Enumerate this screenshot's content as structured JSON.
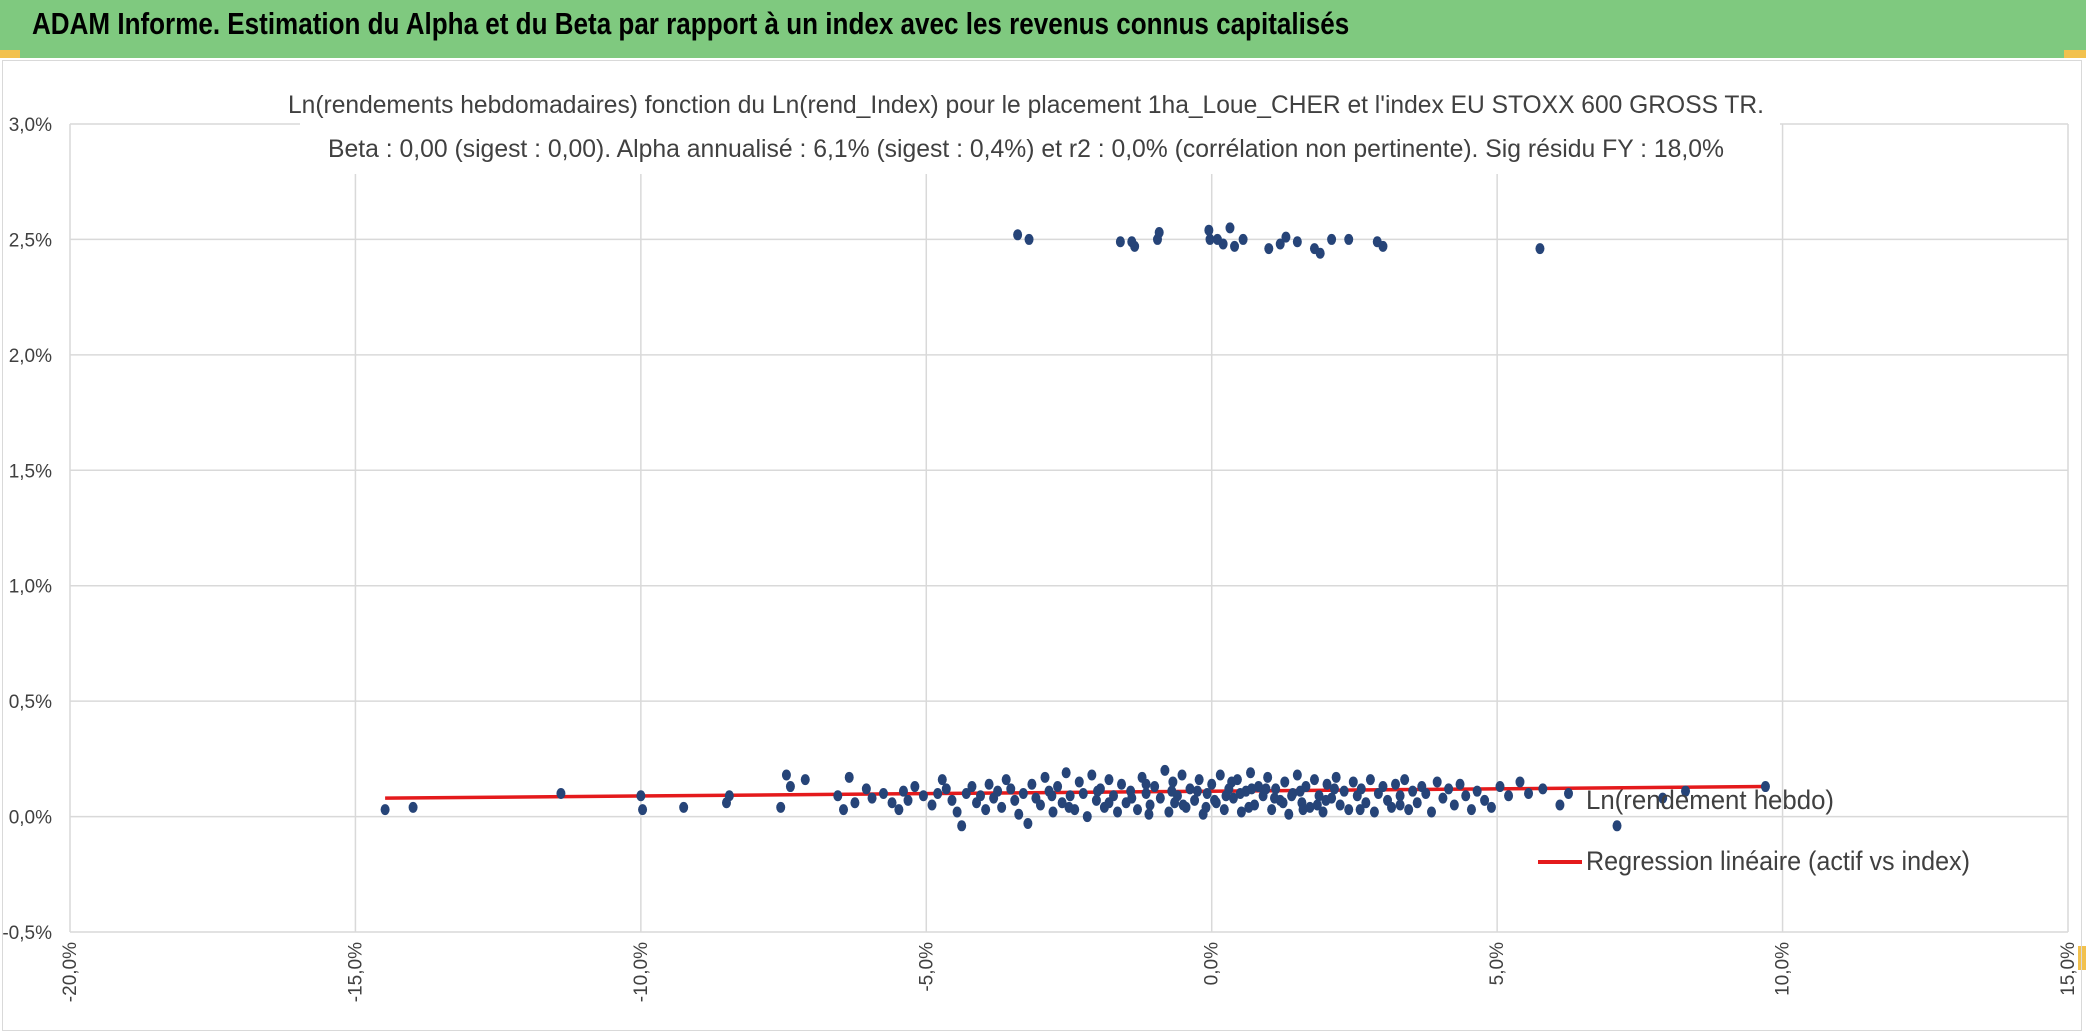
{
  "header": {
    "title": "ADAM Informe. Estimation du Alpha et du Beta par rapport à un index avec les revenus connus capitalisés",
    "background_color": "#7fc97f",
    "accent_color": "#f2c14e"
  },
  "chart_data": {
    "type": "scatter",
    "title": "Ln(rendements hebdomadaires) fonction du Ln(rend_Index) pour le placement 1ha_Loue_CHER et l'index EU STOXX 600 GROSS TR.",
    "subtitle": "Beta : 0,00 (sigest : 0,00). Alpha annualisé : 6,1% (sigest : 0,4%) et r2 : 0,0% (corrélation non pertinente). Sig résidu FY : 18,0%",
    "xlim": [
      -0.2,
      0.15
    ],
    "ylim": [
      -0.005,
      0.03
    ],
    "xticks": [
      -0.2,
      -0.15,
      -0.1,
      -0.05,
      0.0,
      0.05,
      0.1,
      0.15
    ],
    "yticks": [
      -0.005,
      0.0,
      0.005,
      0.01,
      0.015,
      0.02,
      0.025,
      0.03
    ],
    "xtick_labels": [
      "-20,0%",
      "-15,0%",
      "-10,0%",
      "-5,0%",
      "0,0%",
      "5,0%",
      "10,0%",
      "15,0%"
    ],
    "ytick_labels": [
      "-0,5%",
      "0,0%",
      "0,5%",
      "1,0%",
      "1,5%",
      "2,0%",
      "2,5%",
      "3,0%"
    ],
    "grid": true,
    "legend_position": "right",
    "series": [
      {
        "name": "Ln(rendement hebdo)",
        "kind": "scatter",
        "color": "#264478",
        "points": [
          [
            -0.1448,
            0.0003
          ],
          [
            -0.1399,
            0.0004
          ],
          [
            -0.114,
            0.001
          ],
          [
            -0.1,
            0.0009
          ],
          [
            -0.0997,
            0.0003
          ],
          [
            -0.0925,
            0.0004
          ],
          [
            -0.085,
            0.0006
          ],
          [
            -0.0845,
            0.0009
          ],
          [
            -0.0755,
            0.0004
          ],
          [
            -0.0745,
            0.0018
          ],
          [
            -0.0738,
            0.0013
          ],
          [
            -0.0712,
            0.0016
          ],
          [
            -0.0655,
            0.0009
          ],
          [
            -0.0645,
            0.0003
          ],
          [
            -0.0635,
            0.0017
          ],
          [
            -0.0625,
            0.0006
          ],
          [
            -0.0605,
            0.0012
          ],
          [
            -0.0595,
            0.0008
          ],
          [
            -0.0575,
            0.001
          ],
          [
            -0.056,
            0.0006
          ],
          [
            -0.0548,
            0.0003
          ],
          [
            -0.054,
            0.0011
          ],
          [
            -0.0532,
            0.0007
          ],
          [
            -0.052,
            0.0013
          ],
          [
            -0.0505,
            0.0009
          ],
          [
            -0.049,
            0.0005
          ],
          [
            -0.048,
            0.001
          ],
          [
            -0.0472,
            0.0016
          ],
          [
            -0.0465,
            0.0012
          ],
          [
            -0.0455,
            0.0007
          ],
          [
            -0.0446,
            0.0002
          ],
          [
            -0.0438,
            -0.0004
          ],
          [
            -0.043,
            0.001
          ],
          [
            -0.042,
            0.0013
          ],
          [
            -0.0412,
            0.0006
          ],
          [
            -0.0405,
            0.0009
          ],
          [
            -0.0396,
            0.0003
          ],
          [
            -0.039,
            0.0014
          ],
          [
            -0.0382,
            0.0008
          ],
          [
            -0.0375,
            0.0011
          ],
          [
            -0.0368,
            0.0004
          ],
          [
            -0.036,
            0.0016
          ],
          [
            -0.0352,
            0.0012
          ],
          [
            -0.0345,
            0.0007
          ],
          [
            -0.034,
            0.0252
          ],
          [
            -0.0338,
            0.0001
          ],
          [
            -0.033,
            0.001
          ],
          [
            -0.0322,
            -0.0003
          ],
          [
            -0.032,
            0.025
          ],
          [
            -0.0315,
            0.0014
          ],
          [
            -0.0308,
            0.0008
          ],
          [
            -0.03,
            0.0005
          ],
          [
            -0.0292,
            0.0017
          ],
          [
            -0.0285,
            0.0011
          ],
          [
            -0.0278,
            0.0002
          ],
          [
            -0.027,
            0.0013
          ],
          [
            -0.0262,
            0.0006
          ],
          [
            -0.0255,
            0.0019
          ],
          [
            -0.0248,
            0.0009
          ],
          [
            -0.024,
            0.0003
          ],
          [
            -0.0232,
            0.0015
          ],
          [
            -0.0225,
            0.001
          ],
          [
            -0.0218,
            0.0
          ],
          [
            -0.021,
            0.0018
          ],
          [
            -0.0202,
            0.0007
          ],
          [
            -0.0195,
            0.0012
          ],
          [
            -0.0188,
            0.0004
          ],
          [
            -0.018,
            0.0016
          ],
          [
            -0.0172,
            0.0009
          ],
          [
            -0.0165,
            0.0002
          ],
          [
            -0.016,
            0.0249
          ],
          [
            -0.0158,
            0.0014
          ],
          [
            -0.015,
            0.0006
          ],
          [
            -0.0142,
            0.0011
          ],
          [
            -0.014,
            0.0249
          ],
          [
            -0.0135,
            0.0247
          ],
          [
            -0.013,
            0.0003
          ],
          [
            -0.0122,
            0.0017
          ],
          [
            -0.0115,
            0.001
          ],
          [
            -0.0108,
            0.0005
          ],
          [
            -0.01,
            0.0013
          ],
          [
            -0.0095,
            0.025
          ],
          [
            -0.0092,
            0.0253
          ],
          [
            -0.009,
            0.0008
          ],
          [
            -0.0082,
            0.002
          ],
          [
            -0.0075,
            0.0002
          ],
          [
            -0.0068,
            0.0015
          ],
          [
            -0.006,
            0.0009
          ],
          [
            -0.0052,
            0.0018
          ],
          [
            -0.0045,
            0.0004
          ],
          [
            -0.0038,
            0.0012
          ],
          [
            -0.003,
            0.0007
          ],
          [
            -0.0022,
            0.0016
          ],
          [
            -0.0015,
            0.0001
          ],
          [
            -0.0008,
            0.001
          ],
          [
            -0.0005,
            0.0254
          ],
          [
            -0.0003,
            0.025
          ],
          [
            0.0,
            0.0014
          ],
          [
            0.0008,
            0.0006
          ],
          [
            0.001,
            0.025
          ],
          [
            0.0015,
            0.0018
          ],
          [
            0.002,
            0.0248
          ],
          [
            0.0022,
            0.0003
          ],
          [
            0.003,
            0.0012
          ],
          [
            0.0032,
            0.0255
          ],
          [
            0.0038,
            0.0008
          ],
          [
            0.004,
            0.0247
          ],
          [
            0.0045,
            0.0016
          ],
          [
            0.0052,
            0.0002
          ],
          [
            0.0055,
            0.025
          ],
          [
            0.006,
            0.0011
          ],
          [
            0.0068,
            0.0019
          ],
          [
            0.0075,
            0.0005
          ],
          [
            0.0082,
            0.0013
          ],
          [
            0.009,
            0.0009
          ],
          [
            0.0098,
            0.0017
          ],
          [
            0.01,
            0.0246
          ],
          [
            0.0105,
            0.0003
          ],
          [
            0.0112,
            0.0012
          ],
          [
            0.012,
            0.0248
          ],
          [
            0.012,
            0.0007
          ],
          [
            0.0128,
            0.0015
          ],
          [
            0.013,
            0.0251
          ],
          [
            0.0135,
            0.0001
          ],
          [
            0.0142,
            0.001
          ],
          [
            0.015,
            0.0249
          ],
          [
            0.015,
            0.0018
          ],
          [
            0.0158,
            0.0006
          ],
          [
            0.0165,
            0.0013
          ],
          [
            0.0172,
            0.0004
          ],
          [
            0.018,
            0.0246
          ],
          [
            0.018,
            0.0016
          ],
          [
            0.0188,
            0.0009
          ],
          [
            0.019,
            0.0244
          ],
          [
            0.0195,
            0.0002
          ],
          [
            0.0202,
            0.0014
          ],
          [
            0.021,
            0.025
          ],
          [
            0.021,
            0.0008
          ],
          [
            0.0218,
            0.0017
          ],
          [
            0.0225,
            0.0005
          ],
          [
            0.0232,
            0.0011
          ],
          [
            0.024,
            0.025
          ],
          [
            0.024,
            0.0003
          ],
          [
            0.0248,
            0.0015
          ],
          [
            0.0255,
            0.0009
          ],
          [
            0.0262,
            0.0012
          ],
          [
            0.027,
            0.0006
          ],
          [
            0.0278,
            0.0016
          ],
          [
            0.0285,
            0.0002
          ],
          [
            0.029,
            0.0249
          ],
          [
            0.0292,
            0.001
          ],
          [
            0.03,
            0.0247
          ],
          [
            0.03,
            0.0013
          ],
          [
            0.0308,
            0.0007
          ],
          [
            0.0315,
            0.0004
          ],
          [
            0.0322,
            0.0014
          ],
          [
            0.033,
            0.0009
          ],
          [
            0.0338,
            0.0016
          ],
          [
            0.0345,
            0.0003
          ],
          [
            0.0352,
            0.0011
          ],
          [
            0.036,
            0.0006
          ],
          [
            0.0368,
            0.0013
          ],
          [
            0.0375,
            0.001
          ],
          [
            0.0385,
            0.0002
          ],
          [
            0.0395,
            0.0015
          ],
          [
            0.0405,
            0.0008
          ],
          [
            0.0415,
            0.0012
          ],
          [
            0.0425,
            0.0005
          ],
          [
            0.0435,
            0.0014
          ],
          [
            0.0445,
            0.0009
          ],
          [
            0.0455,
            0.0003
          ],
          [
            0.0465,
            0.0011
          ],
          [
            0.0478,
            0.0007
          ],
          [
            0.049,
            0.0004
          ],
          [
            0.0505,
            0.0013
          ],
          [
            0.052,
            0.0009
          ],
          [
            0.054,
            0.0015
          ],
          [
            0.0555,
            0.001
          ],
          [
            0.0575,
            0.0246
          ],
          [
            0.058,
            0.0012
          ],
          [
            0.061,
            0.0005
          ],
          [
            0.0625,
            0.001
          ],
          [
            0.071,
            -0.0004
          ],
          [
            0.079,
            0.0008
          ],
          [
            0.083,
            0.0011
          ],
          [
            0.097,
            0.0013
          ],
          [
            -0.0115,
            0.0014
          ],
          [
            -0.0065,
            0.0006
          ],
          [
            -0.0025,
            0.0011
          ],
          [
            0.0005,
            0.0007
          ],
          [
            0.0035,
            0.0015
          ],
          [
            0.0065,
            0.0004
          ],
          [
            0.0095,
            0.0012
          ],
          [
            0.0125,
            0.0006
          ],
          [
            0.0155,
            0.0011
          ],
          [
            0.0185,
            0.0005
          ],
          [
            0.0215,
            0.0012
          ],
          [
            -0.02,
            0.0011
          ],
          [
            -0.018,
            0.0006
          ],
          [
            -0.011,
            0.0001
          ],
          [
            -0.005,
            0.0005
          ],
          [
            0.0025,
            0.0009
          ],
          [
            0.007,
            0.0012
          ],
          [
            0.011,
            0.0008
          ],
          [
            0.016,
            0.0003
          ],
          [
            -0.028,
            0.0009
          ],
          [
            -0.025,
            0.0004
          ],
          [
            -0.014,
            0.0008
          ],
          [
            -0.007,
            0.0011
          ],
          [
            -0.001,
            0.0004
          ],
          [
            0.005,
            0.001
          ],
          [
            0.014,
            0.0009
          ],
          [
            0.02,
            0.0007
          ],
          [
            0.026,
            0.0003
          ],
          [
            0.033,
            0.0005
          ]
        ]
      },
      {
        "name": "Regression linéaire (actif vs index)",
        "kind": "line",
        "color": "#e41a1c",
        "points": [
          [
            -0.1448,
            0.0008
          ],
          [
            0.097,
            0.0013
          ]
        ]
      }
    ]
  }
}
